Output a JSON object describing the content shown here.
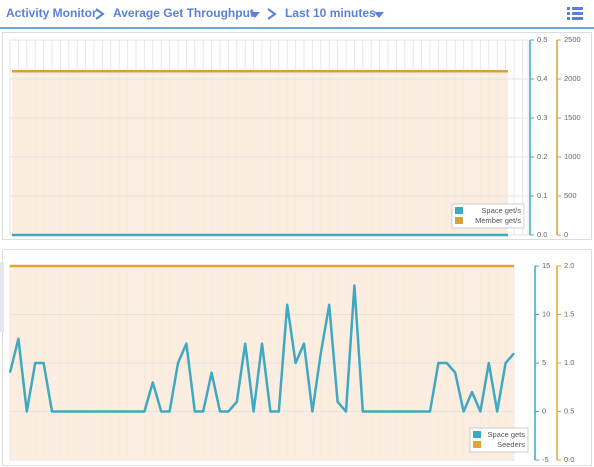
{
  "header": {
    "breadcrumb": [
      "Activity Monitor",
      "Average Get Throughput",
      "Last 10 minutes"
    ]
  },
  "chart_data": [
    {
      "type": "line",
      "ylim": [
        0,
        0.5
      ],
      "yticks": [
        {
          "value": 0,
          "label": "0.0"
        },
        0.1,
        0.2,
        0.3,
        0.4,
        0.5
      ],
      "y2lim": [
        0,
        2500
      ],
      "y2ticks": [
        0,
        500,
        1000,
        1500,
        2000,
        2500
      ],
      "grid": true,
      "legend": "bottom-right",
      "series": [
        {
          "name": "Space get/s",
          "color": "#3fa9c2",
          "values": [
            0,
            0,
            0,
            0,
            0,
            0,
            0,
            0,
            0,
            0,
            0,
            0,
            0,
            0,
            0,
            0,
            0,
            0,
            0,
            0,
            0,
            0,
            0,
            0,
            0,
            0,
            0,
            0,
            0,
            0,
            0,
            0,
            0,
            0,
            0,
            0,
            0,
            0,
            0,
            0,
            0,
            0,
            0,
            0,
            0,
            0,
            0,
            0,
            0,
            0,
            0,
            0,
            0,
            0,
            0,
            0,
            0,
            0,
            0,
            0,
            0
          ]
        },
        {
          "name": "Member get/s",
          "color": "#d6a23e",
          "axis": "y2",
          "area": true,
          "values": [
            2100,
            2100,
            2100,
            2100,
            2100,
            2100,
            2100,
            2100,
            2100,
            2100,
            2100,
            2100,
            2100,
            2100,
            2100,
            2100,
            2100,
            2100,
            2100,
            2100,
            2100,
            2100,
            2100,
            2100,
            2100,
            2100,
            2100,
            2100,
            2100,
            2100,
            2100,
            2100,
            2100,
            2100,
            2100,
            2100,
            2100,
            2100,
            2100,
            2100,
            2100,
            2100,
            2100,
            2100,
            2100,
            2100,
            2100,
            2100,
            2100,
            2100,
            2100,
            2100,
            2100,
            2100,
            2100,
            2100,
            2100,
            2100,
            2100,
            2100,
            2100
          ]
        }
      ]
    },
    {
      "type": "line",
      "ylim": [
        -5,
        15
      ],
      "yticks": [
        -5,
        0,
        5,
        10,
        15
      ],
      "y2lim": [
        0,
        2
      ],
      "y2ticks": [
        {
          "value": 0,
          "label": "0.0"
        },
        0.5,
        {
          "value": 1,
          "label": "1.0"
        },
        1.5,
        {
          "value": 2,
          "label": "2.0"
        }
      ],
      "grid": true,
      "legend": "bottom-right",
      "series": [
        {
          "name": "Space gets",
          "color": "#3fa9c2",
          "values": [
            4,
            7.5,
            0,
            5,
            5,
            0,
            0,
            0,
            0,
            0,
            0,
            0,
            0,
            0,
            0,
            0,
            0,
            3,
            0,
            0,
            5,
            7,
            0,
            0,
            4,
            0,
            0,
            1,
            7,
            0,
            7,
            0,
            0,
            11,
            5,
            7,
            0,
            6,
            11,
            1,
            0,
            13,
            0,
            0,
            0,
            0,
            0,
            0,
            0,
            0,
            0,
            5,
            5,
            4,
            0,
            2,
            0,
            5,
            0,
            5,
            6
          ]
        },
        {
          "name": "Seeders",
          "color": "#e3a532",
          "axis": "y2",
          "area": true,
          "values": [
            2,
            2,
            2,
            2,
            2,
            2,
            2,
            2,
            2,
            2,
            2,
            2,
            2,
            2,
            2,
            2,
            2,
            2,
            2,
            2,
            2,
            2,
            2,
            2,
            2,
            2,
            2,
            2,
            2,
            2,
            2,
            2,
            2,
            2,
            2,
            2,
            2,
            2,
            2,
            2,
            2,
            2,
            2,
            2,
            2,
            2,
            2,
            2,
            2,
            2,
            2,
            2,
            2,
            2,
            2,
            2,
            2,
            2,
            2,
            2,
            2
          ]
        }
      ]
    }
  ]
}
